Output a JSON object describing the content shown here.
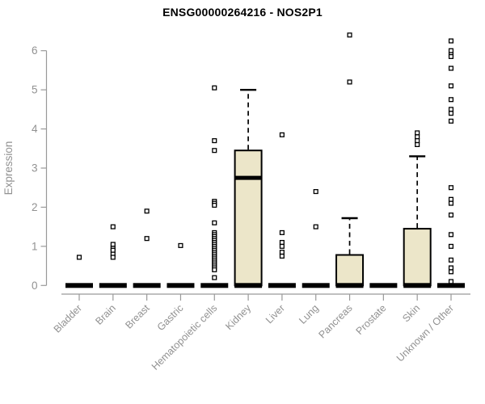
{
  "chart_data": {
    "type": "boxplot",
    "title": "ENSG00000264216 - NOS2P1",
    "xlabel": "",
    "ylabel": "Expression",
    "ylim": [
      0,
      6.5
    ],
    "yticks": [
      "0",
      "1",
      "2",
      "3",
      "4",
      "5",
      "6"
    ],
    "grid": false,
    "legend": false,
    "colors": {
      "box_fill": "#ECE6C9",
      "box_stroke": "#000000",
      "median": "#000000",
      "axis": "#999999",
      "tick_label": "#919191",
      "title": "#000000",
      "outlier_fill": "#ffffff",
      "outlier_stroke": "#000000"
    },
    "categories": [
      "Bladder",
      "Brain",
      "Breast",
      "Gastric",
      "Hematopoietic cells",
      "Kidney",
      "Liver",
      "Lung",
      "Pancreas",
      "Prostate",
      "Skin",
      "Unknown / Other"
    ],
    "series": [
      {
        "name": "Bladder",
        "q1": 0,
        "median": 0,
        "q3": 0,
        "whisker_low": 0,
        "whisker_high": 0,
        "outliers": [
          0.72
        ]
      },
      {
        "name": "Brain",
        "q1": 0,
        "median": 0,
        "q3": 0,
        "whisker_low": 0,
        "whisker_high": 0,
        "outliers": [
          1.5,
          1.05,
          0.95,
          0.9,
          0.8,
          0.72
        ]
      },
      {
        "name": "Breast",
        "q1": 0,
        "median": 0,
        "q3": 0,
        "whisker_low": 0,
        "whisker_high": 0,
        "outliers": [
          1.9,
          1.2
        ]
      },
      {
        "name": "Gastric",
        "q1": 0,
        "median": 0,
        "q3": 0,
        "whisker_low": 0,
        "whisker_high": 0,
        "outliers": [
          1.02
        ]
      },
      {
        "name": "Hematopoietic cells",
        "q1": 0,
        "median": 0,
        "q3": 0,
        "whisker_low": 0,
        "whisker_high": 0,
        "outliers": [
          5.05,
          3.7,
          3.45,
          2.15,
          2.1,
          2.05,
          1.6,
          1.35,
          1.3,
          1.25,
          1.2,
          1.15,
          1.1,
          1.05,
          1.0,
          0.95,
          0.9,
          0.85,
          0.8,
          0.75,
          0.7,
          0.65,
          0.6,
          0.55,
          0.5,
          0.45,
          0.4,
          0.2
        ]
      },
      {
        "name": "Kidney",
        "q1": 0,
        "median": 2.75,
        "q3": 3.45,
        "whisker_low": 0,
        "whisker_high": 5.0,
        "outliers": []
      },
      {
        "name": "Liver",
        "q1": 0,
        "median": 0,
        "q3": 0,
        "whisker_low": 0,
        "whisker_high": 0,
        "outliers": [
          3.85,
          1.35,
          1.1,
          1.0,
          0.85,
          0.75
        ]
      },
      {
        "name": "Lung",
        "q1": 0,
        "median": 0,
        "q3": 0,
        "whisker_low": 0,
        "whisker_high": 0,
        "outliers": [
          2.4,
          1.5
        ]
      },
      {
        "name": "Pancreas",
        "q1": 0,
        "median": 0,
        "q3": 0.78,
        "whisker_low": 0,
        "whisker_high": 1.72,
        "outliers": [
          6.4,
          5.2
        ]
      },
      {
        "name": "Prostate",
        "q1": 0,
        "median": 0,
        "q3": 0,
        "whisker_low": 0,
        "whisker_high": 0,
        "outliers": []
      },
      {
        "name": "Skin",
        "q1": 0,
        "median": 0,
        "q3": 1.45,
        "whisker_low": 0,
        "whisker_high": 3.3,
        "outliers": [
          3.9,
          3.8,
          3.7,
          3.6
        ]
      },
      {
        "name": "Unknown / Other",
        "q1": 0,
        "median": 0,
        "q3": 0,
        "whisker_low": 0,
        "whisker_high": 0,
        "outliers": [
          6.25,
          6.0,
          5.9,
          5.85,
          5.55,
          5.1,
          4.75,
          4.5,
          4.4,
          4.2,
          2.5,
          2.2,
          2.1,
          1.8,
          1.3,
          1.0,
          0.65,
          0.45,
          0.35,
          0.1
        ]
      }
    ]
  }
}
